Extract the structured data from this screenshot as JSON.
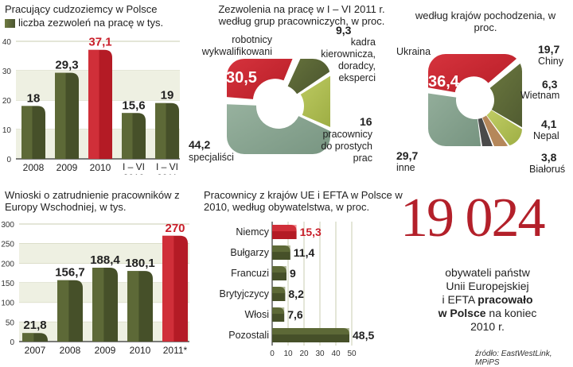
{
  "colors": {
    "olive": "#5f6a3a",
    "red": "#d9252f",
    "grid": "#c9ccb0",
    "teal": "#7f9c8a",
    "lime": "#a7b64a",
    "tan": "#b5875a",
    "dark": "#333333"
  },
  "chart_data": [
    {
      "id": "c1",
      "type": "bar",
      "title": "Pracujący cudzoziemcy w Polsce",
      "legend": "liczba zezwoleń na pracę w tys.",
      "categories": [
        "2008",
        "2009",
        "2010",
        "I – VI 2010",
        "I – VI 2011"
      ],
      "values": [
        18,
        29.3,
        37.1,
        15.6,
        19
      ],
      "value_labels": [
        "18",
        "29,3",
        "37,1",
        "15,6",
        "19"
      ],
      "highlight": [
        2
      ],
      "ylim": [
        0,
        40
      ],
      "yticks": [
        "0",
        "10",
        "20",
        "30",
        "40"
      ],
      "grid": true
    },
    {
      "id": "c2",
      "type": "pie",
      "title": "Zezwolenia na pracę w I – VI 2011 r. według grup pracowniczych, w proc.",
      "slices": [
        {
          "label": "robotnicy wykwalifikowani",
          "value": 30.5,
          "value_label": "30,5"
        },
        {
          "label": "kadra kierownicza, doradcy, eksperci",
          "value": 9.3,
          "value_label": "9,3"
        },
        {
          "label": "pracownicy do prostych prac",
          "value": 16,
          "value_label": "16"
        },
        {
          "label": "specjaliści",
          "value": 44.2,
          "value_label": "44,2"
        }
      ]
    },
    {
      "id": "c3",
      "type": "pie",
      "title": "według krajów pochodzenia, w proc.",
      "slices": [
        {
          "label": "Ukraina",
          "value": 36.4,
          "value_label": "36,4"
        },
        {
          "label": "Chiny",
          "value": 19.7,
          "value_label": "19,7"
        },
        {
          "label": "Wietnam",
          "value": 6.3,
          "value_label": "6,3"
        },
        {
          "label": "Nepal",
          "value": 4.1,
          "value_label": "4,1"
        },
        {
          "label": "Białoruś",
          "value": 3.8,
          "value_label": "3,8"
        },
        {
          "label": "inne",
          "value": 29.7,
          "value_label": "29,7"
        }
      ]
    },
    {
      "id": "c4",
      "type": "bar",
      "title": "Wnioski o zatrudnienie pracowników z Europy Wschodniej, w tys.",
      "categories": [
        "2007",
        "2008",
        "2009",
        "2010",
        "2011*"
      ],
      "values": [
        21.8,
        156.7,
        188.4,
        180.1,
        270
      ],
      "value_labels": [
        "21,8",
        "156,7",
        "188,4",
        "180,1",
        "270"
      ],
      "highlight": [
        4
      ],
      "ylim": [
        0,
        300
      ],
      "yticks": [
        "0",
        "50",
        "100",
        "150",
        "200",
        "250",
        "300"
      ],
      "grid": true
    },
    {
      "id": "c5",
      "type": "bar",
      "orientation": "horizontal",
      "title": "Pracownicy z krajów UE i EFTA w Polsce w 2010, według obywatelstwa, w proc.",
      "categories": [
        "Niemcy",
        "Bułgarzy",
        "Francuzi",
        "Brytyjczycy",
        "Włosi",
        "Pozostali"
      ],
      "values": [
        15.3,
        11.4,
        9,
        8.2,
        7.6,
        48.5
      ],
      "value_labels": [
        "15,3",
        "11,4",
        "9",
        "8,2",
        "7,6",
        "48,5"
      ],
      "highlight": [
        0
      ],
      "xlim": [
        0,
        50
      ],
      "xticks": [
        "0",
        "10",
        "20",
        "30",
        "40",
        "50"
      ]
    }
  ],
  "highlight": {
    "number": "19 024",
    "line1": "obywateli państw",
    "line2": "Unii Europejskiej",
    "line3_a": "i EFTA ",
    "line3_b": "pracowało",
    "line4_a": "w Polsce",
    "line4_b": " na koniec",
    "line5": "2010 r."
  },
  "source": "źródło: EastWestLink, MPiPS"
}
